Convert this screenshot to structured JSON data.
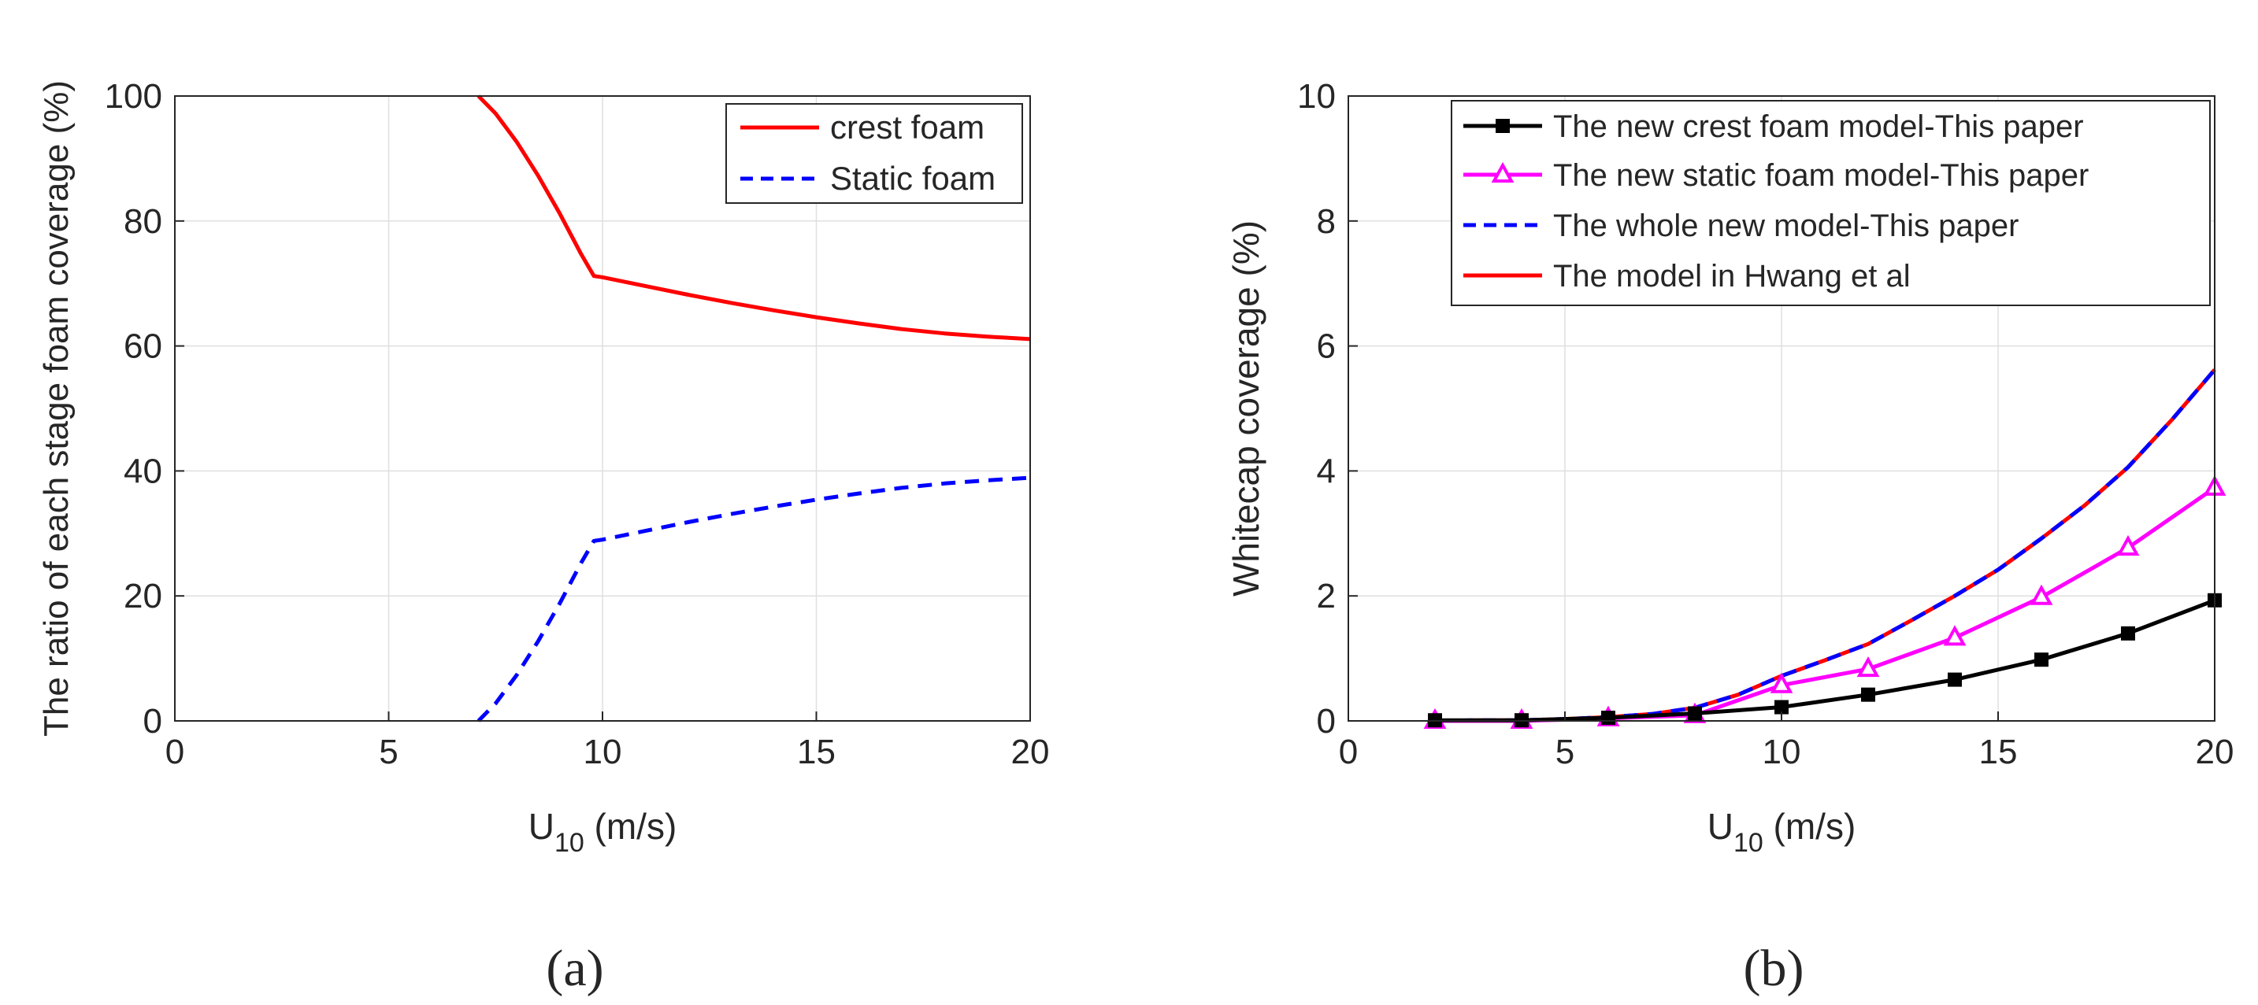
{
  "chart_data": [
    {
      "type": "line",
      "panel_label": "(a)",
      "xlabel_main": "U",
      "xlabel_sub": "10",
      "xlabel_rest": " (m/s)",
      "ylabel": "The ratio of each stage foam coverage (%)",
      "xlim": [
        0,
        20
      ],
      "ylim": [
        0,
        100
      ],
      "xticks": [
        0,
        5,
        10,
        15,
        20
      ],
      "yticks": [
        0,
        20,
        40,
        60,
        80,
        100
      ],
      "grid": true,
      "legend_position": "top-right",
      "series": [
        {
          "name": "crest foam",
          "color": "#ff0000",
          "dash": "solid",
          "marker": "none",
          "x": [
            7.1,
            7.5,
            8.0,
            8.5,
            9.0,
            9.5,
            9.8,
            10,
            11,
            12,
            13,
            14,
            15,
            16,
            17,
            18,
            19,
            20
          ],
          "y": [
            100,
            97.2,
            92.6,
            87.2,
            81.2,
            74.7,
            71.2,
            71.0,
            69.6,
            68.2,
            66.9,
            65.7,
            64.6,
            63.6,
            62.7,
            62.0,
            61.5,
            61.1
          ]
        },
        {
          "name": "Static foam",
          "color": "#0000ff",
          "dash": "dashed",
          "marker": "none",
          "x": [
            7.1,
            7.5,
            8.0,
            8.5,
            9.0,
            9.5,
            9.8,
            10,
            11,
            12,
            13,
            14,
            15,
            16,
            17,
            18,
            19,
            20
          ],
          "y": [
            0,
            2.8,
            7.4,
            12.8,
            18.8,
            25.3,
            28.8,
            29.0,
            30.4,
            31.8,
            33.1,
            34.3,
            35.4,
            36.4,
            37.3,
            38.0,
            38.5,
            38.9
          ]
        }
      ]
    },
    {
      "type": "line",
      "panel_label": "(b)",
      "xlabel_main": "U",
      "xlabel_sub": "10",
      "xlabel_rest": " (m/s)",
      "ylabel": "Whitecap coverage (%)",
      "xlim": [
        0,
        20
      ],
      "ylim": [
        0,
        10
      ],
      "xticks": [
        0,
        5,
        10,
        15,
        20
      ],
      "yticks": [
        0,
        2,
        4,
        6,
        8,
        10
      ],
      "grid": true,
      "legend_position": "top-right",
      "series": [
        {
          "name": "The new crest foam model-This paper",
          "color": "#000000",
          "dash": "solid",
          "marker": "square",
          "x": [
            2,
            4,
            6,
            8,
            10,
            12,
            14,
            16,
            18,
            20
          ],
          "y": [
            0.01,
            0.01,
            0.05,
            0.12,
            0.22,
            0.42,
            0.66,
            0.98,
            1.4,
            1.93
          ]
        },
        {
          "name": "The new static foam model-This paper",
          "color": "#ff00ff",
          "dash": "solid",
          "marker": "triangle",
          "x": [
            2,
            4,
            6,
            8,
            10,
            12,
            14,
            16,
            18,
            20
          ],
          "y": [
            0,
            0,
            0.04,
            0.09,
            0.57,
            0.83,
            1.33,
            1.98,
            2.77,
            3.73
          ]
        },
        {
          "name": "The whole new model-This paper",
          "color": "#0000ff",
          "dash": "dashed",
          "marker": "none",
          "x": [
            2,
            3,
            4,
            5,
            6,
            7,
            8,
            9,
            10,
            11,
            12,
            13,
            14,
            15,
            16,
            17,
            18,
            19,
            20
          ],
          "y": [
            0.0,
            0.01,
            0.01,
            0.03,
            0.06,
            0.11,
            0.21,
            0.42,
            0.72,
            0.97,
            1.23,
            1.61,
            2.0,
            2.42,
            2.92,
            3.45,
            4.06,
            4.81,
            5.62
          ]
        },
        {
          "name": "The model in Hwang et al",
          "color": "#ff0000",
          "dash": "solid",
          "marker": "none",
          "x": [
            2,
            3,
            4,
            5,
            6,
            7,
            8,
            9,
            10,
            11,
            12,
            13,
            14,
            15,
            16,
            17,
            18,
            19,
            20
          ],
          "y": [
            0.0,
            0.01,
            0.01,
            0.03,
            0.06,
            0.11,
            0.21,
            0.42,
            0.72,
            0.97,
            1.23,
            1.61,
            2.0,
            2.42,
            2.92,
            3.45,
            4.06,
            4.81,
            5.62
          ]
        }
      ]
    }
  ]
}
